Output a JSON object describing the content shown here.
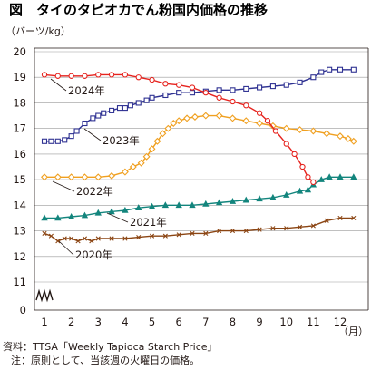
{
  "chart_data": {
    "type": "line",
    "title": "図　タイのタピオカでん粉国内価格の推移",
    "ylabel": "（バーツ/kg）",
    "xlabel": "（月）",
    "xlim": [
      1,
      12.8
    ],
    "ylim": [
      11,
      20
    ],
    "x_ticks": [
      "1",
      "2",
      "3",
      "4",
      "5",
      "6",
      "7",
      "8",
      "9",
      "10",
      "11",
      "12"
    ],
    "y_ticks": [
      "11",
      "12",
      "13",
      "14",
      "15",
      "16",
      "17",
      "18",
      "19",
      "20"
    ],
    "y_bottom_label": "0",
    "axis_break": true,
    "grid": "horizontal",
    "series": [
      {
        "name": "2020年",
        "color": "#8B4513",
        "marker": "x",
        "x": [
          1.0,
          1.25,
          1.5,
          1.75,
          2.0,
          2.25,
          2.5,
          2.75,
          3.0,
          3.5,
          4.0,
          4.5,
          5.0,
          5.5,
          6.0,
          6.5,
          7.0,
          7.5,
          8.0,
          8.5,
          9.0,
          9.5,
          10.0,
          10.5,
          11.0,
          11.5,
          12.0,
          12.5
        ],
        "values": [
          12.9,
          12.8,
          12.6,
          12.7,
          12.7,
          12.6,
          12.7,
          12.6,
          12.7,
          12.7,
          12.7,
          12.75,
          12.8,
          12.8,
          12.85,
          12.9,
          12.9,
          13.0,
          13.0,
          13.0,
          13.05,
          13.1,
          13.1,
          13.15,
          13.2,
          13.4,
          13.5,
          13.5
        ]
      },
      {
        "name": "2021年",
        "color": "#13857D",
        "marker": "triangle",
        "x": [
          1.0,
          1.5,
          2.0,
          2.5,
          3.0,
          3.5,
          4.0,
          4.5,
          5.0,
          5.5,
          6.0,
          6.5,
          7.0,
          7.5,
          8.0,
          8.5,
          9.0,
          9.5,
          10.0,
          10.5,
          10.8,
          11.0,
          11.3,
          11.6,
          12.0,
          12.5
        ],
        "values": [
          13.5,
          13.5,
          13.55,
          13.6,
          13.7,
          13.75,
          13.8,
          13.9,
          13.95,
          14.0,
          14.0,
          14.0,
          14.05,
          14.1,
          14.15,
          14.2,
          14.25,
          14.3,
          14.4,
          14.55,
          14.6,
          14.8,
          15.0,
          15.1,
          15.1,
          15.1
        ]
      },
      {
        "name": "2022年",
        "color": "#F0A020",
        "marker": "diamond",
        "x": [
          1.0,
          1.5,
          2.0,
          2.5,
          3.0,
          3.5,
          4.0,
          4.3,
          4.6,
          4.8,
          5.0,
          5.2,
          5.4,
          5.6,
          5.8,
          6.0,
          6.3,
          6.6,
          7.0,
          7.5,
          8.0,
          8.5,
          9.0,
          9.5,
          10.0,
          10.5,
          11.0,
          11.5,
          12.0,
          12.3,
          12.5
        ],
        "values": [
          15.1,
          15.1,
          15.1,
          15.1,
          15.1,
          15.15,
          15.3,
          15.5,
          15.65,
          15.9,
          16.2,
          16.5,
          16.8,
          17.0,
          17.2,
          17.3,
          17.4,
          17.45,
          17.5,
          17.5,
          17.4,
          17.3,
          17.2,
          17.1,
          17.0,
          16.95,
          16.9,
          16.8,
          16.7,
          16.6,
          16.5
        ]
      },
      {
        "name": "2023年",
        "color": "#2E3192",
        "marker": "square",
        "x": [
          1.0,
          1.25,
          1.5,
          1.75,
          2.0,
          2.2,
          2.5,
          2.8,
          3.0,
          3.2,
          3.5,
          3.8,
          4.0,
          4.2,
          4.5,
          4.8,
          5.0,
          5.5,
          6.0,
          6.5,
          7.0,
          7.5,
          8.0,
          8.5,
          9.0,
          9.5,
          10.0,
          10.5,
          11.0,
          11.3,
          11.6,
          12.0,
          12.5
        ],
        "values": [
          16.5,
          16.5,
          16.5,
          16.55,
          16.7,
          16.9,
          17.2,
          17.4,
          17.5,
          17.6,
          17.7,
          17.8,
          17.8,
          17.9,
          18.0,
          18.1,
          18.2,
          18.3,
          18.4,
          18.4,
          18.45,
          18.5,
          18.5,
          18.55,
          18.6,
          18.65,
          18.7,
          18.8,
          19.0,
          19.2,
          19.3,
          19.3,
          19.3
        ]
      },
      {
        "name": "2024年",
        "color": "#E6231E",
        "marker": "circle",
        "x": [
          1.0,
          1.5,
          2.0,
          2.5,
          3.0,
          3.5,
          4.0,
          4.5,
          5.0,
          5.5,
          6.0,
          6.5,
          7.0,
          7.5,
          8.0,
          8.5,
          9.0,
          9.3,
          9.6,
          10.0,
          10.3,
          10.6,
          10.8,
          11.0
        ],
        "values": [
          19.1,
          19.05,
          19.05,
          19.05,
          19.1,
          19.1,
          19.1,
          19.0,
          18.9,
          18.75,
          18.7,
          18.6,
          18.4,
          18.2,
          18.05,
          17.9,
          17.6,
          17.3,
          16.9,
          16.4,
          16.0,
          15.5,
          15.1,
          14.9
        ]
      }
    ]
  },
  "notes": {
    "source": "資料：TTSA「Weekly Tapioca Starch Price」",
    "note": "注：原則として、当該週の火曜日の価格。"
  }
}
